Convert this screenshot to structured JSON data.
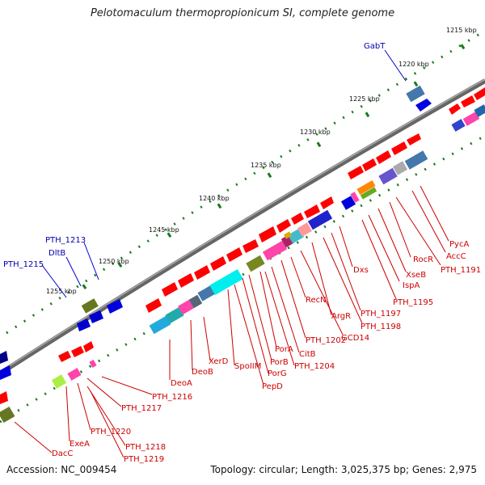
{
  "title": "Pelotomaculum thermopropionicum SI, complete genome",
  "accession": "Accession: NC_009454",
  "topology": "Topology: circular; Length: 3,025,375 bp; Genes: 2,975",
  "ticks": [
    "1215 kbp",
    "1220 kbp",
    "1225 kbp",
    "1230 kbp",
    "1235 kbp",
    "1240 kbp",
    "1245 kbp",
    "1250 kbp",
    "1255 kbp"
  ],
  "outer_labels": [
    "GabT",
    "PTH_1213",
    "DltB",
    "PTH_1215"
  ],
  "inner_labels": [
    "PycA",
    "AccC",
    "PTH_1191",
    "RocR",
    "XseB",
    "IspA",
    "PTH_1195",
    "Dxs",
    "PTH_1197",
    "PTH_1198",
    "ArgR",
    "GCD14",
    "RecN",
    "PTH_1202",
    "CitB",
    "PorA",
    "PorB",
    "PTH_1204",
    "PorG",
    "SpoIIM",
    "PepD",
    "XerD",
    "DeoB",
    "DeoA",
    "PTH_1216",
    "PTH_1217",
    "PTH_1220",
    "PTH_1218",
    "PTH_1219",
    "ExeA",
    "DacC"
  ],
  "colors": {
    "gene_arrow": "#ff0000",
    "label_inner": "#cc0000",
    "label_outer": "#0000aa",
    "tick": "#1a7a1a",
    "backbone": "#666666"
  }
}
